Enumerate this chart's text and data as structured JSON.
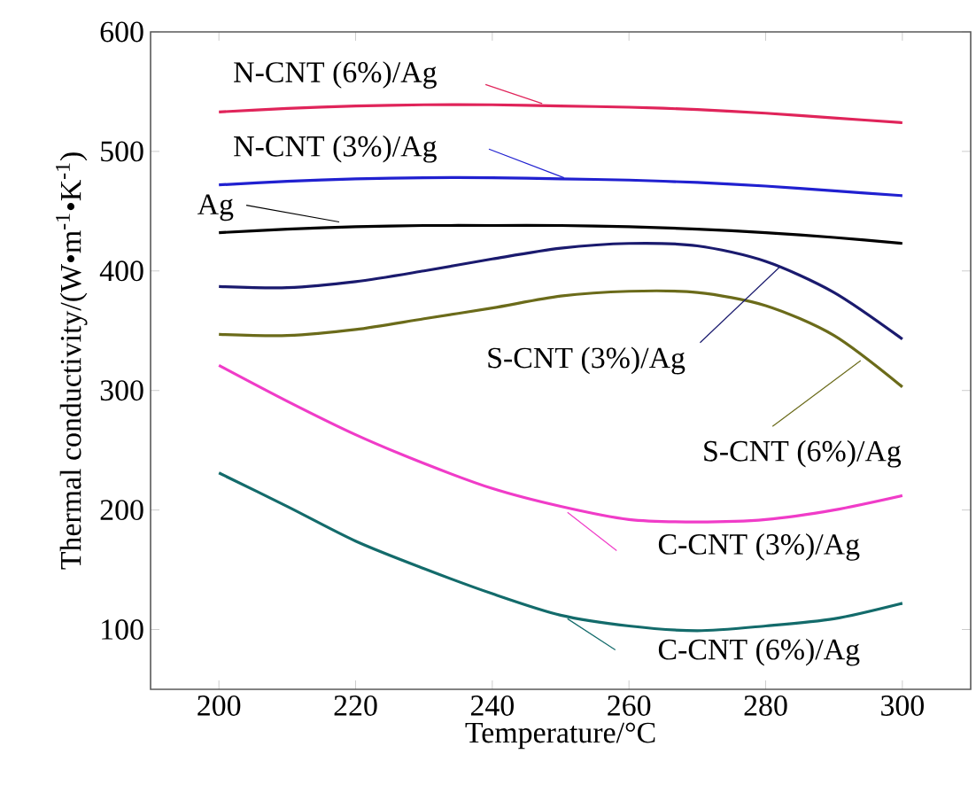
{
  "chart_data": {
    "type": "line",
    "xlabel": "Temperature/°C",
    "ylabel": "Thermal conductivity/(W•m$^{-1}$•K$^{-1}$)",
    "xlim": [
      190,
      310
    ],
    "ylim": [
      50,
      600
    ],
    "xticks": [
      200,
      220,
      240,
      260,
      280,
      300
    ],
    "yticks": [
      100,
      200,
      300,
      400,
      500,
      600
    ],
    "legend": "top left",
    "x": [
      200,
      210,
      220,
      230,
      240,
      250,
      260,
      270,
      280,
      290,
      300
    ],
    "series": [
      {
        "name": "N-CNT (6%)/Ag",
        "color": "#e0245a",
        "values": [
          533,
          536,
          538,
          539,
          539,
          538,
          537,
          535,
          532,
          528,
          524
        ]
      },
      {
        "name": "N-CNT (3%)/Ag",
        "color": "#2020d0",
        "values": [
          472,
          475,
          477,
          478,
          478,
          477,
          476,
          474,
          471,
          467,
          463
        ]
      },
      {
        "name": "Ag",
        "color": "#000000",
        "values": [
          432,
          435,
          437,
          438,
          438,
          438,
          437,
          435,
          432,
          428,
          423
        ]
      },
      {
        "name": "S-CNT (3%)/Ag",
        "color": "#1a1a6e",
        "values": [
          387,
          386,
          391,
          400,
          410,
          419,
          423,
          421,
          408,
          382,
          343
        ]
      },
      {
        "name": "S-CNT (6%)/Ag",
        "color": "#6b6b1a",
        "values": [
          347,
          346,
          351,
          360,
          369,
          379,
          383,
          382,
          371,
          346,
          303
        ]
      },
      {
        "name": "C-CNT (3%)/Ag",
        "color": "#f03cc8",
        "values": [
          321,
          291,
          263,
          239,
          218,
          203,
          192,
          190,
          192,
          200,
          212
        ]
      },
      {
        "name": "C-CNT (6%)/Ag",
        "color": "#136b6b",
        "values": [
          231,
          203,
          174,
          151,
          130,
          112,
          103,
          99,
          103,
          109,
          122
        ]
      }
    ]
  }
}
